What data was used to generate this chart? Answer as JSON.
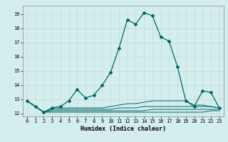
{
  "xlabel": "Humidex (Indice chaleur)",
  "background_color": "#d4eeee",
  "grid_color": "#c8dede",
  "line_color": "#006666",
  "xlim": [
    -0.5,
    23.5
  ],
  "ylim": [
    11.8,
    19.6
  ],
  "yticks": [
    12,
    13,
    14,
    15,
    16,
    17,
    18,
    19
  ],
  "xticks": [
    0,
    1,
    2,
    3,
    4,
    5,
    6,
    7,
    8,
    9,
    10,
    11,
    12,
    13,
    14,
    15,
    16,
    17,
    18,
    19,
    20,
    21,
    22,
    23
  ],
  "main_line": {
    "x": [
      0,
      1,
      2,
      3,
      4,
      5,
      6,
      7,
      8,
      9,
      10,
      11,
      12,
      13,
      14,
      15,
      16,
      17,
      18,
      19,
      20,
      21,
      22,
      23
    ],
    "y": [
      12.9,
      12.5,
      12.1,
      12.4,
      12.5,
      12.9,
      13.7,
      13.1,
      13.3,
      14.0,
      14.9,
      16.6,
      18.6,
      18.3,
      19.1,
      18.9,
      17.4,
      17.1,
      15.3,
      12.9,
      12.5,
      13.6,
      13.5,
      12.4
    ]
  },
  "flat_lines": [
    {
      "x": [
        0,
        1,
        2,
        3,
        4,
        5,
        6,
        7,
        8,
        9,
        10,
        11,
        12,
        13,
        14,
        15,
        16,
        17,
        18,
        19,
        20,
        21,
        22,
        23
      ],
      "y": [
        12.9,
        12.5,
        12.1,
        12.1,
        12.1,
        12.1,
        12.1,
        12.1,
        12.1,
        12.1,
        12.1,
        12.1,
        12.1,
        12.1,
        12.1,
        12.1,
        12.1,
        12.1,
        12.1,
        12.1,
        12.1,
        12.1,
        12.2,
        12.2
      ]
    },
    {
      "x": [
        0,
        1,
        2,
        3,
        4,
        5,
        6,
        7,
        8,
        9,
        10,
        11,
        12,
        13,
        14,
        15,
        16,
        17,
        18,
        19,
        20,
        21,
        22,
        23
      ],
      "y": [
        12.9,
        12.5,
        12.1,
        12.2,
        12.2,
        12.2,
        12.2,
        12.2,
        12.2,
        12.2,
        12.2,
        12.2,
        12.2,
        12.2,
        12.2,
        12.3,
        12.3,
        12.3,
        12.3,
        12.3,
        12.3,
        12.3,
        12.3,
        12.3
      ]
    },
    {
      "x": [
        0,
        1,
        2,
        3,
        4,
        5,
        6,
        7,
        8,
        9,
        10,
        11,
        12,
        13,
        14,
        15,
        16,
        17,
        18,
        19,
        20,
        21,
        22,
        23
      ],
      "y": [
        12.9,
        12.5,
        12.1,
        12.3,
        12.3,
        12.3,
        12.3,
        12.3,
        12.3,
        12.3,
        12.3,
        12.4,
        12.4,
        12.4,
        12.5,
        12.5,
        12.5,
        12.5,
        12.5,
        12.5,
        12.5,
        12.5,
        12.5,
        12.4
      ]
    },
    {
      "x": [
        0,
        1,
        2,
        3,
        4,
        5,
        6,
        7,
        8,
        9,
        10,
        11,
        12,
        13,
        14,
        15,
        16,
        17,
        18,
        19,
        20,
        21,
        22,
        23
      ],
      "y": [
        12.9,
        12.5,
        12.1,
        12.4,
        12.4,
        12.4,
        12.4,
        12.4,
        12.4,
        12.4,
        12.5,
        12.6,
        12.7,
        12.7,
        12.8,
        12.9,
        12.9,
        12.9,
        12.9,
        12.9,
        12.6,
        12.6,
        12.5,
        12.4
      ]
    }
  ]
}
